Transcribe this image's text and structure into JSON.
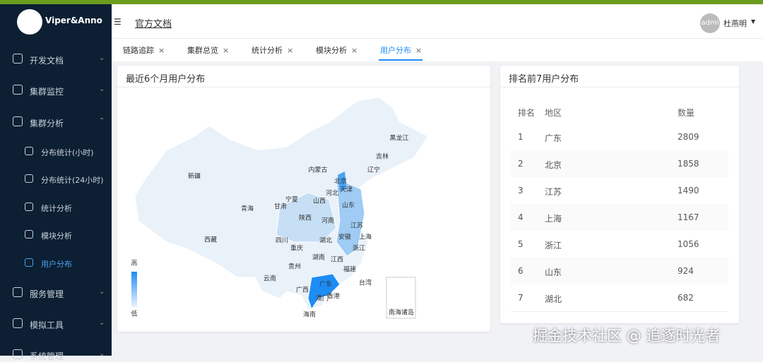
{
  "sidebar": {
    "logo": "Viper&Anno",
    "menu": [
      "开发文档",
      "集群监控",
      "集群分析",
      "服务管理",
      "模拟工具",
      "系统管理"
    ],
    "submenu": [
      "分布统计(小时)",
      "分布统计(24小时)",
      "统计分析",
      "模块分析",
      "用户分布"
    ]
  },
  "header": {
    "link": "官方文档",
    "avatar": "admi",
    "user": "杜燕明"
  },
  "tabs": [
    "链路追踪",
    "集群总览",
    "统计分析",
    "模块分析",
    "用户分布"
  ],
  "map_card": {
    "title": "最近6个月用户分布",
    "legend_high": "高",
    "legend_low": "低",
    "inset": "南海诸岛",
    "labels": [
      "黑龙江",
      "吉林",
      "辽宁",
      "内蒙古",
      "北京",
      "天津",
      "河北",
      "新疆",
      "宁夏",
      "山西",
      "山东",
      "甘肃",
      "青海",
      "陕西",
      "河南",
      "江苏",
      "西藏",
      "四川",
      "安徽",
      "上海",
      "湖北",
      "重庆",
      "浙江",
      "湖南",
      "江西",
      "贵州",
      "福建",
      "云南",
      "台湾",
      "广西",
      "广东",
      "澳门",
      "香港",
      "海南"
    ]
  },
  "table_card": {
    "title": "排名前7用户分布",
    "columns": [
      "排名",
      "地区",
      "数量"
    ],
    "rows": [
      [
        "1",
        "广东",
        "2809"
      ],
      [
        "2",
        "北京",
        "1858"
      ],
      [
        "3",
        "江苏",
        "1490"
      ],
      [
        "4",
        "上海",
        "1167"
      ],
      [
        "5",
        "浙江",
        "1056"
      ],
      [
        "6",
        "山东",
        "924"
      ],
      [
        "7",
        "湖北",
        "682"
      ]
    ]
  },
  "watermark": "掘金技术社区 @ 追逐时光者"
}
